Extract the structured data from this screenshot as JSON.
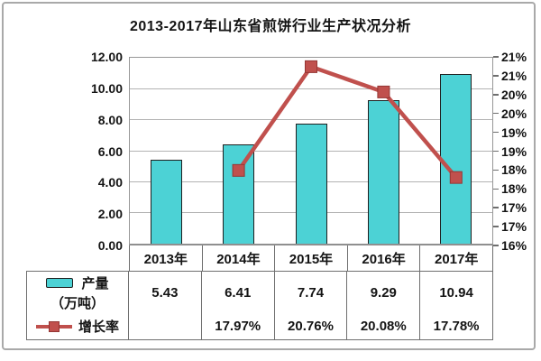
{
  "title": "2013-2017年山东省煎饼行业生产状况分析",
  "chart_data": {
    "type": "bar+line",
    "categories": [
      "2013年",
      "2014年",
      "2015年",
      "2016年",
      "2017年"
    ],
    "series": [
      {
        "name": "产量（万吨）",
        "type": "bar",
        "axis": "left",
        "values": [
          5.43,
          6.41,
          7.74,
          9.29,
          10.94
        ]
      },
      {
        "name": "增长率",
        "type": "line",
        "axis": "right",
        "values": [
          null,
          17.97,
          20.76,
          20.08,
          17.78
        ]
      }
    ],
    "title": "2013-2017年山东省煎饼行业生产状况分析",
    "left_axis": {
      "min": 0,
      "max": 12,
      "tick_step": 2,
      "labels": [
        "12.00",
        "10.00",
        "8.00",
        "6.00",
        "4.00",
        "2.00",
        "0.00"
      ]
    },
    "right_axis": {
      "min": 16,
      "max": 21,
      "tick_step": 0.5,
      "labels": [
        "21%",
        "21%",
        "20%",
        "20%",
        "19%",
        "19%",
        "18%",
        "18%",
        "17%",
        "17%",
        "16%"
      ]
    },
    "grid": true,
    "legend_position": "table-left"
  },
  "table": {
    "row_production": {
      "label_line1": "产量",
      "label_line2": "（万吨）",
      "values": [
        "5.43",
        "6.41",
        "7.74",
        "9.29",
        "10.94"
      ]
    },
    "row_growth": {
      "label": "增长率",
      "values": [
        "",
        "17.97%",
        "20.76%",
        "20.08%",
        "17.78%"
      ]
    }
  },
  "icons": {
    "production_swatch": "production-series-swatch-icon",
    "growth_marker": "growth-series-line-marker-icon"
  },
  "colors": {
    "bar_fill": "#4CD2D5",
    "bar_border": "#1F1F1F",
    "line": "#C0504D",
    "marker_border": "#943634",
    "gridline": "#B3B3B3",
    "plot_border": "#979797",
    "table_border": "#6E6E6E",
    "frame": "#A9A9A9",
    "text": "#141414"
  }
}
